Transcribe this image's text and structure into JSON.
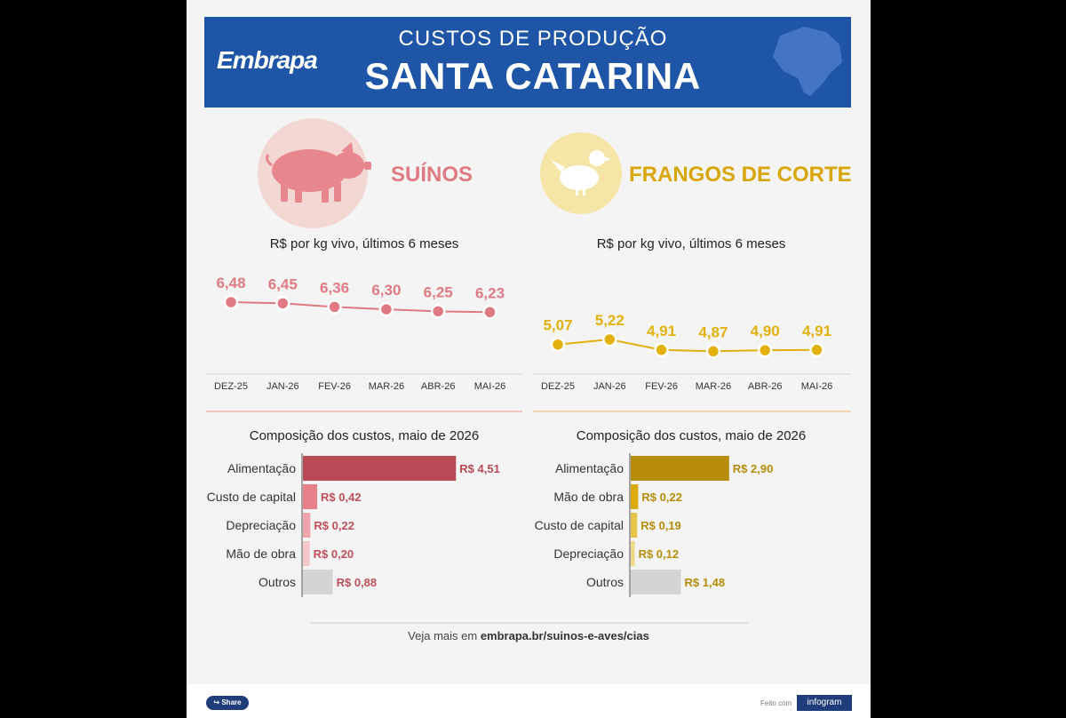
{
  "header": {
    "logo": "Embrapa",
    "subtitle": "CUSTOS DE PRODUÇÃO",
    "title": "SANTA CATARINA"
  },
  "colors": {
    "header_bg": "#1f55a6",
    "suinos": "#e07a82",
    "suinos_dark": "#b84a55",
    "frangos": "#e3b10e",
    "frangos_dark": "#b78c08",
    "outros": "#d4d4d4"
  },
  "suinos": {
    "label": "SUÍNOS",
    "icon": "pig-icon"
  },
  "frangos": {
    "label": "FRANGOS DE CORTE",
    "icon": "chicken-icon"
  },
  "footer": {
    "share": "Share",
    "feito": "Feito com",
    "brand": "infogram",
    "more_prefix": "Veja mais em ",
    "more_link": "embrapa.br/suinos-e-aves/cias"
  },
  "chart_data": [
    {
      "type": "line",
      "title": "R$ por kg vivo, últimos 6 meses",
      "categories": [
        "DEZ-25",
        "JAN-26",
        "FEV-26",
        "MAR-26",
        "ABR-26",
        "MAI-26"
      ],
      "values": [
        6.48,
        6.45,
        6.36,
        6.3,
        6.25,
        6.23
      ],
      "labels": [
        "6,48",
        "6,45",
        "6,36",
        "6,30",
        "6,25",
        "6,23"
      ],
      "color": "#e07a82"
    },
    {
      "type": "line",
      "title": "R$ por kg vivo, últimos 6 meses",
      "categories": [
        "DEZ-25",
        "JAN-26",
        "FEV-26",
        "MAR-26",
        "ABR-26",
        "MAI-26"
      ],
      "values": [
        5.07,
        5.22,
        4.91,
        4.87,
        4.9,
        4.91
      ],
      "labels": [
        "5,07",
        "5,22",
        "4,91",
        "4,87",
        "4,90",
        "4,91"
      ],
      "color": "#e3b10e"
    },
    {
      "type": "bar",
      "title": "Composição dos custos, maio de 2026",
      "categories": [
        "Alimentação",
        "Custo de capital",
        "Depreciação",
        "Mão de obra",
        "Outros"
      ],
      "values": [
        4.51,
        0.42,
        0.22,
        0.2,
        0.88
      ],
      "labels": [
        "R$ 4,51",
        "R$ 0,42",
        "R$ 0,22",
        "R$ 0,20",
        "R$ 0,88"
      ],
      "colors": [
        "#b84a55",
        "#e8808a",
        "#eda4aa",
        "#f3c6ca",
        "#d4d4d4"
      ],
      "label_colors": [
        "#b84a55",
        "#c0505a",
        "#c0505a",
        "#c0505a",
        "#c0505a"
      ]
    },
    {
      "type": "bar",
      "title": "Composição dos custos, maio de 2026",
      "categories": [
        "Alimentação",
        "Mão de obra",
        "Custo de capital",
        "Depreciação",
        "Outros"
      ],
      "values": [
        2.9,
        0.22,
        0.19,
        0.12,
        1.48
      ],
      "labels": [
        "R$ 2,90",
        "R$ 0,22",
        "R$ 0,19",
        "R$ 0,12",
        "R$ 1,48"
      ],
      "colors": [
        "#b78c08",
        "#dcab10",
        "#e8c34a",
        "#f0d889",
        "#d4d4d4"
      ],
      "label_colors": [
        "#b78c08",
        "#b78c08",
        "#b78c08",
        "#b78c08",
        "#b78c08"
      ]
    }
  ]
}
